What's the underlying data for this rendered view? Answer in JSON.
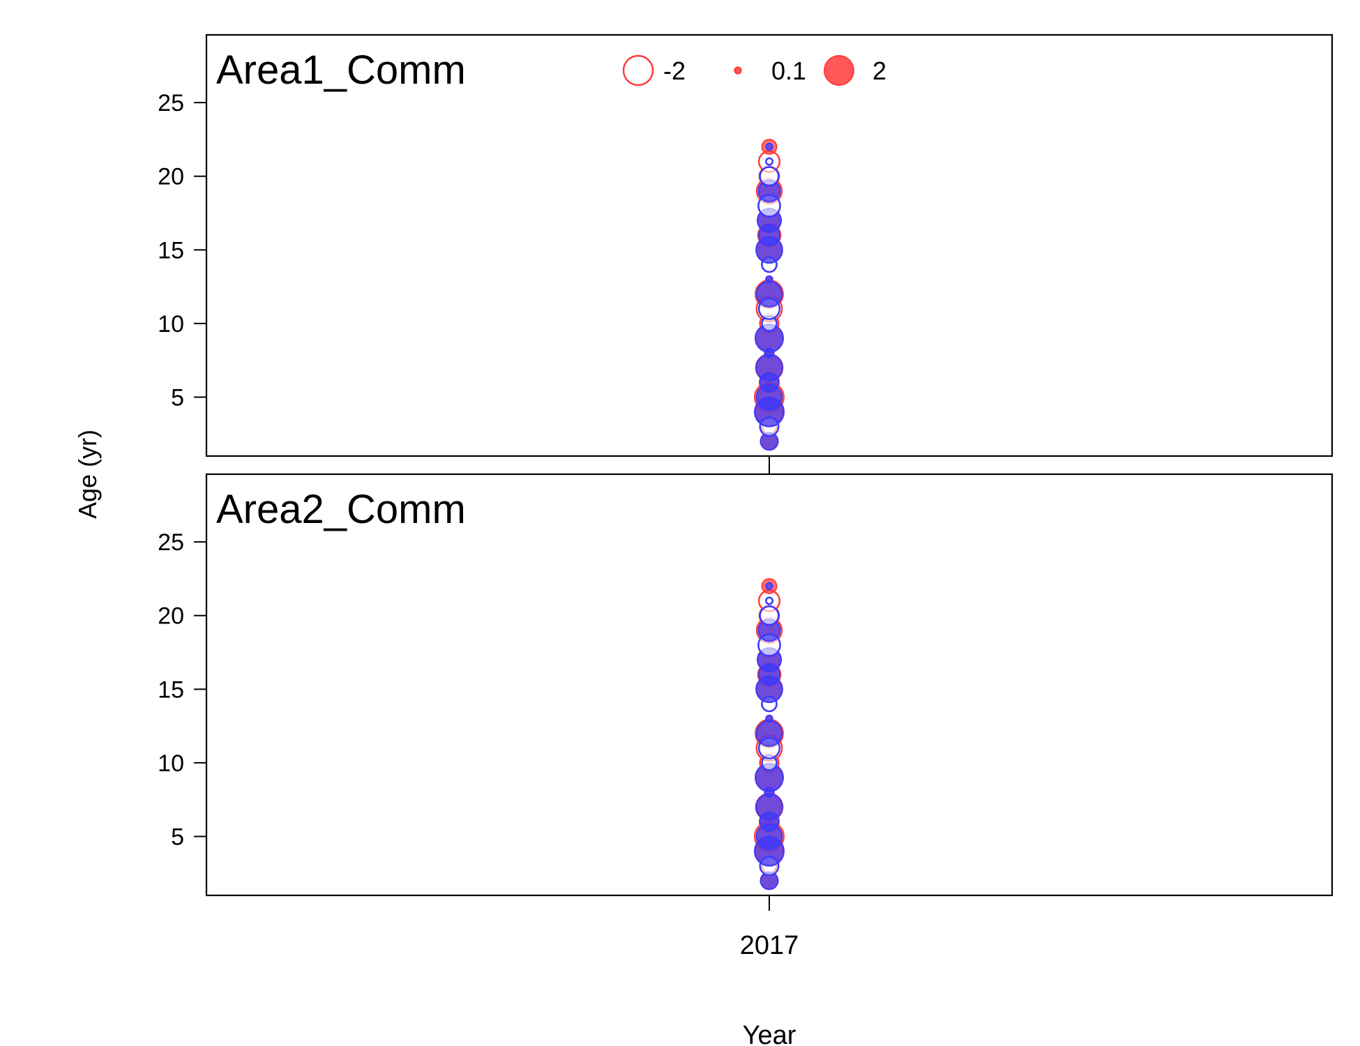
{
  "chart_data": {
    "type": "scatter",
    "xlabel": "Year",
    "ylabel": "Age (yr)",
    "x_ticks": [
      "2017"
    ],
    "y_ticks": [
      5,
      10,
      15,
      20,
      25
    ],
    "ylim": [
      1,
      29.6
    ],
    "legend": {
      "placement": "top-center",
      "entries": [
        {
          "label": "-2",
          "value": -2,
          "filled": false
        },
        {
          "label": "0.1",
          "value": 0.1,
          "filled": true
        },
        {
          "label": "2",
          "value": 2,
          "filled": true
        }
      ]
    },
    "colors": {
      "positive": "#ff3b3b",
      "negative": "#3a3aff",
      "frame": "#000000"
    },
    "panels": [
      {
        "title": "Area1_Comm",
        "points": [
          {
            "x": 2017,
            "age": 2,
            "obs": 0.7,
            "exp": 0.7
          },
          {
            "x": 2017,
            "age": 3,
            "obs": -0.5,
            "exp": -0.8
          },
          {
            "x": 2017,
            "age": 4,
            "obs": 1.8,
            "exp": 2.0
          },
          {
            "x": 2017,
            "age": 5,
            "obs": 2.0,
            "exp": 1.5
          },
          {
            "x": 2017,
            "age": 6,
            "obs": 0.9,
            "exp": 0.8
          },
          {
            "x": 2017,
            "age": 7,
            "obs": 1.7,
            "exp": 1.6
          },
          {
            "x": 2017,
            "age": 8,
            "obs": 0.2,
            "exp": 0.2
          },
          {
            "x": 2017,
            "age": 9,
            "obs": 1.8,
            "exp": 1.8
          },
          {
            "x": 2017,
            "age": 10,
            "obs": -0.8,
            "exp": -0.5
          },
          {
            "x": 2017,
            "age": 11,
            "obs": -1.5,
            "exp": -1.0
          },
          {
            "x": 2017,
            "age": 12,
            "obs": 1.8,
            "exp": 1.5
          },
          {
            "x": 2017,
            "age": 13,
            "obs": 0.1,
            "exp": 0.1
          },
          {
            "x": 2017,
            "age": 14,
            "obs": -0.5,
            "exp": -0.5
          },
          {
            "x": 2017,
            "age": 15,
            "obs": 1.6,
            "exp": 1.6
          },
          {
            "x": 2017,
            "age": 16,
            "obs": 1.2,
            "exp": 1.0
          },
          {
            "x": 2017,
            "age": 17,
            "obs": 1.3,
            "exp": 1.3
          },
          {
            "x": 2017,
            "age": 18,
            "obs": -1.1,
            "exp": -1.1
          },
          {
            "x": 2017,
            "age": 19,
            "obs": 1.5,
            "exp": 1.1
          },
          {
            "x": 2017,
            "age": 20,
            "obs": -0.9,
            "exp": -0.8
          },
          {
            "x": 2017,
            "age": 21,
            "obs": -1.0,
            "exp": -0.1
          },
          {
            "x": 2017,
            "age": 22,
            "obs": 0.5,
            "exp": 0.1
          }
        ]
      },
      {
        "title": "Area2_Comm",
        "points": [
          {
            "x": 2017,
            "age": 2,
            "obs": 0.7,
            "exp": 0.7
          },
          {
            "x": 2017,
            "age": 3,
            "obs": -0.5,
            "exp": -0.8
          },
          {
            "x": 2017,
            "age": 4,
            "obs": 1.8,
            "exp": 2.0
          },
          {
            "x": 2017,
            "age": 5,
            "obs": 2.0,
            "exp": 1.5
          },
          {
            "x": 2017,
            "age": 6,
            "obs": 0.9,
            "exp": 0.8
          },
          {
            "x": 2017,
            "age": 7,
            "obs": 1.7,
            "exp": 1.6
          },
          {
            "x": 2017,
            "age": 8,
            "obs": 0.2,
            "exp": 0.2
          },
          {
            "x": 2017,
            "age": 9,
            "obs": 1.8,
            "exp": 1.8
          },
          {
            "x": 2017,
            "age": 10,
            "obs": -0.8,
            "exp": -0.5
          },
          {
            "x": 2017,
            "age": 11,
            "obs": -1.5,
            "exp": -1.0
          },
          {
            "x": 2017,
            "age": 12,
            "obs": 1.8,
            "exp": 1.5
          },
          {
            "x": 2017,
            "age": 13,
            "obs": 0.1,
            "exp": 0.1
          },
          {
            "x": 2017,
            "age": 14,
            "obs": -0.5,
            "exp": -0.5
          },
          {
            "x": 2017,
            "age": 15,
            "obs": 1.6,
            "exp": 1.6
          },
          {
            "x": 2017,
            "age": 16,
            "obs": 1.2,
            "exp": 1.0
          },
          {
            "x": 2017,
            "age": 17,
            "obs": 1.3,
            "exp": 1.3
          },
          {
            "x": 2017,
            "age": 18,
            "obs": -1.1,
            "exp": -1.1
          },
          {
            "x": 2017,
            "age": 19,
            "obs": 1.5,
            "exp": 1.1
          },
          {
            "x": 2017,
            "age": 20,
            "obs": -0.9,
            "exp": -0.8
          },
          {
            "x": 2017,
            "age": 21,
            "obs": -1.0,
            "exp": -0.1
          },
          {
            "x": 2017,
            "age": 22,
            "obs": 0.5,
            "exp": 0.1
          }
        ]
      }
    ]
  }
}
